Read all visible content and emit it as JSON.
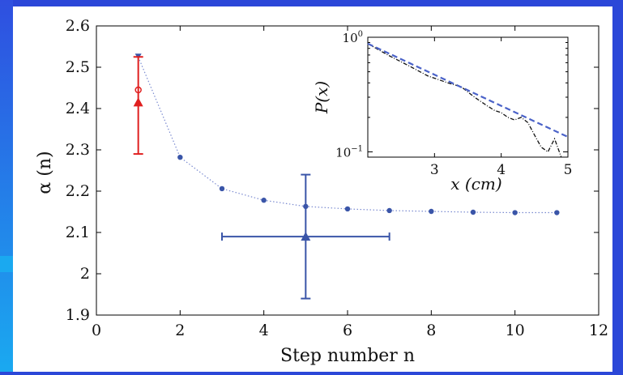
{
  "chart_data": [
    {
      "type": "scatter",
      "xlabel": "Step number n",
      "ylabel": "α (n)",
      "xlim": [
        0,
        12
      ],
      "ylim": [
        1.9,
        2.6
      ],
      "xticks": [
        "0",
        "2",
        "4",
        "6",
        "8",
        "10",
        "12"
      ],
      "yticks": [
        "1.9",
        "2",
        "2.1",
        "2.2",
        "2.3",
        "2.4",
        "2.5",
        "2.6"
      ],
      "series": [
        {
          "color": "#3a55a8",
          "style": "dotted line with dots",
          "x": [
            1,
            2,
            3,
            4,
            5,
            6,
            7,
            8,
            9,
            10,
            11
          ],
          "y": [
            2.525,
            2.282,
            2.206,
            2.178,
            2.163,
            2.157,
            2.153,
            2.151,
            2.149,
            2.148,
            2.148
          ]
        },
        {
          "color": "#e02020",
          "style": "filled triangle with error bar",
          "x": [
            1
          ],
          "y": [
            2.415
          ],
          "yerr": [
            [
              2.29,
              2.525
            ]
          ]
        },
        {
          "color": "#e02020",
          "style": "open circle",
          "x": [
            1
          ],
          "y": [
            2.445
          ]
        },
        {
          "color": "#3a55a8",
          "style": "filled triangle with error bars",
          "x": [
            5
          ],
          "y": [
            2.09
          ],
          "xerr": [
            [
              3,
              7
            ]
          ],
          "yerr": [
            [
              1.94,
              2.24
            ]
          ]
        }
      ]
    },
    {
      "type": "line",
      "xlabel": "x (cm)",
      "ylabel": "P(x)",
      "xlim": [
        2,
        5
      ],
      "ylim": [
        0.09,
        1.0
      ],
      "log_y": true,
      "xticks": [
        "3",
        "4",
        "5"
      ],
      "yticks": [
        "10^0",
        "10^-1"
      ],
      "series": [
        {
          "color": "#111111",
          "style": "dash-dot",
          "x": [
            2.0,
            2.3,
            2.6,
            2.9,
            3.2,
            3.4,
            3.6,
            3.8,
            3.9,
            4.0,
            4.1,
            4.2,
            4.3,
            4.4,
            4.5,
            4.6,
            4.7,
            4.8,
            4.9
          ],
          "y": [
            0.88,
            0.7,
            0.57,
            0.46,
            0.4,
            0.37,
            0.3,
            0.25,
            0.23,
            0.22,
            0.2,
            0.19,
            0.2,
            0.18,
            0.14,
            0.11,
            0.1,
            0.13,
            0.09
          ]
        },
        {
          "color": "#4a62c8",
          "style": "dashed fit",
          "x": [
            2.0,
            5.0
          ],
          "y": [
            0.88,
            0.135
          ]
        }
      ]
    }
  ]
}
